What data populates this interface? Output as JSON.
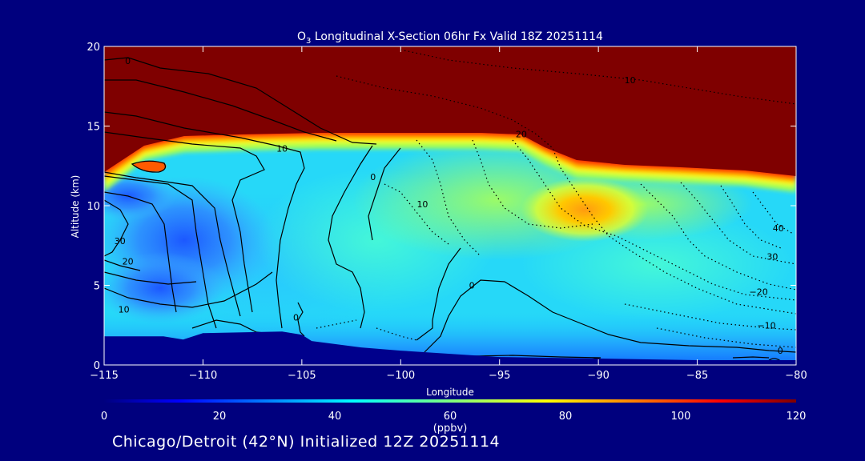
{
  "chart_data": {
    "type": "heatmap",
    "title": {
      "species_main": "O",
      "species_sub": "3",
      "rest": " Longitudinal X-Section 06hr  Fx Valid 18Z 20251114"
    },
    "xlabel": "Longitude",
    "ylabel": "Altitude (km)",
    "xlim": [
      -115,
      -80
    ],
    "ylim": [
      0,
      20
    ],
    "x_ticks": [
      -115,
      -110,
      -105,
      -100,
      -95,
      -90,
      -85,
      -80
    ],
    "x_tick_labels": [
      "−115",
      "−110",
      "−105",
      "−100",
      "−95",
      "−90",
      "−85",
      "−80"
    ],
    "y_ticks": [
      0,
      5,
      10,
      15,
      20
    ],
    "y_tick_labels": [
      "0",
      "5",
      "10",
      "15",
      "20"
    ],
    "colorbar": {
      "min": 0,
      "max": 120,
      "ticks": [
        0,
        20,
        40,
        60,
        80,
        100,
        120
      ],
      "tick_labels": [
        "0",
        "20",
        "40",
        "60",
        "80",
        "100",
        "120"
      ],
      "units": "(ppbv)"
    },
    "field_units": "ppbv",
    "terrain_km": [
      [
        -115,
        1.8
      ],
      [
        -112,
        1.8
      ],
      [
        -111,
        1.6
      ],
      [
        -110,
        2.0
      ],
      [
        -106,
        2.1
      ],
      [
        -105,
        1.9
      ],
      [
        -104.5,
        1.5
      ],
      [
        -102,
        1.1
      ],
      [
        -100,
        0.9
      ],
      [
        -95,
        0.5
      ],
      [
        -90,
        0.4
      ],
      [
        -85,
        0.3
      ],
      [
        -80,
        0.3
      ]
    ],
    "tropopause_km": [
      [
        -115,
        11.5
      ],
      [
        -112,
        13.6
      ],
      [
        -105,
        14.1
      ],
      [
        -100,
        14.1
      ],
      [
        -94,
        14.2
      ],
      [
        -92,
        13.0
      ],
      [
        -90,
        12.1
      ],
      [
        -85,
        11.6
      ],
      [
        -80,
        10.8
      ]
    ],
    "high_ozone_region": {
      "center": [
        -91.5,
        9.7
      ],
      "value_ppbv": 80
    },
    "low_ozone_region": {
      "center": [
        -110,
        7.5
      ],
      "value_ppbv": 25
    },
    "contour_labels": [
      {
        "text": "0",
        "lon": -113.8,
        "alt": 19.1
      },
      {
        "text": "10",
        "lon": -88.4,
        "alt": 17.9
      },
      {
        "text": "10",
        "lon": -106.0,
        "alt": 13.6
      },
      {
        "text": "0",
        "lon": -101.4,
        "alt": 11.8
      },
      {
        "text": "20",
        "lon": -93.9,
        "alt": 14.5
      },
      {
        "text": "10",
        "lon": -98.9,
        "alt": 10.1
      },
      {
        "text": "40",
        "lon": -80.9,
        "alt": 8.6
      },
      {
        "text": "30",
        "lon": -114.2,
        "alt": 7.8
      },
      {
        "text": "20",
        "lon": -113.8,
        "alt": 6.5
      },
      {
        "text": "30",
        "lon": -81.2,
        "alt": 6.8
      },
      {
        "text": "10",
        "lon": -114.0,
        "alt": 3.5
      },
      {
        "text": "−20",
        "lon": -81.9,
        "alt": 4.6
      },
      {
        "text": "0",
        "lon": -96.4,
        "alt": 5.0
      },
      {
        "text": "−10",
        "lon": -81.5,
        "alt": 2.5
      },
      {
        "text": "0",
        "lon": -105.3,
        "alt": 3.0
      },
      {
        "text": "0",
        "lon": -80.8,
        "alt": 0.9
      }
    ]
  },
  "footer_text": "Chicago/Detroit (42°N) Initialized 12Z 20251114",
  "colors": {
    "background": "#00007e",
    "stratosphere": "#7f0000",
    "terrain": "#00008c",
    "contour": "#000000",
    "text": "#ffffff"
  }
}
